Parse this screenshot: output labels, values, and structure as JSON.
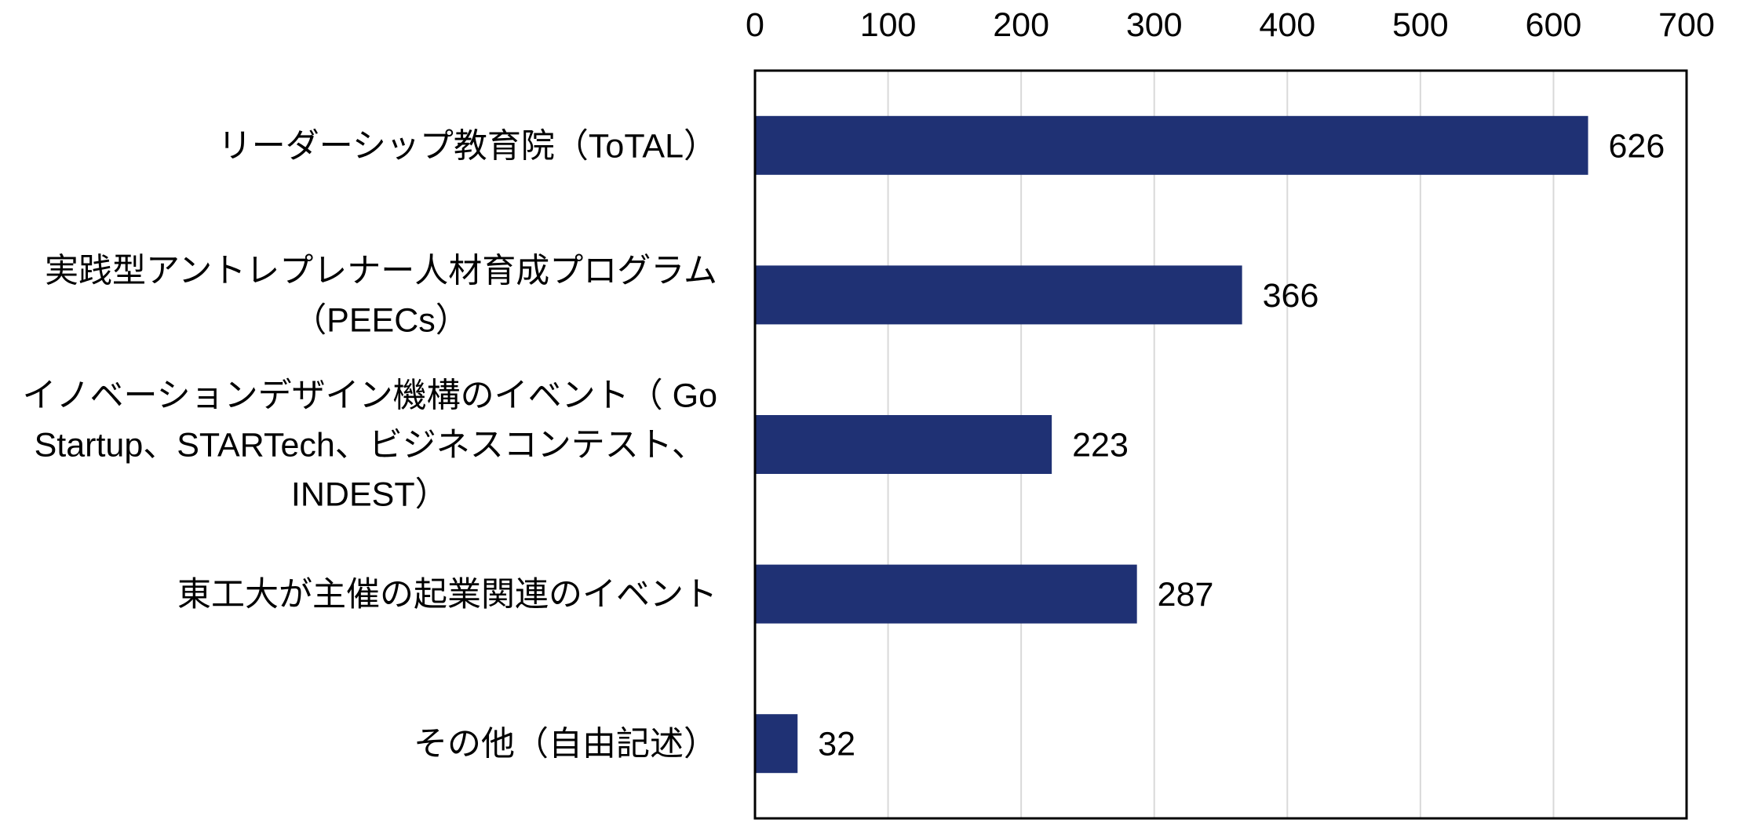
{
  "chart_data": {
    "type": "bar",
    "orientation": "horizontal",
    "categories": [
      [
        "リーダーシップ教育院（ToTAL）"
      ],
      [
        "実践型アントレプレナー人材育成プログラム",
        "（PEECs）"
      ],
      [
        "イノベーションデザイン機構のイベント（ Go",
        "Startup、STARTech、ビジネスコンテスト、",
        "INDEST）"
      ],
      [
        "東工大が主催の起業関連のイベント"
      ],
      [
        "その他（自由記述）"
      ]
    ],
    "values": [
      626,
      366,
      223,
      287,
      32
    ],
    "xlim": [
      0,
      700
    ],
    "xticks": [
      0,
      100,
      200,
      300,
      400,
      500,
      600,
      700
    ],
    "axis_position": "top",
    "grid": true,
    "legend": "none",
    "bar_color": "#1F3174",
    "grid_color": "#D9D9D9",
    "frame_color": "#000000"
  }
}
